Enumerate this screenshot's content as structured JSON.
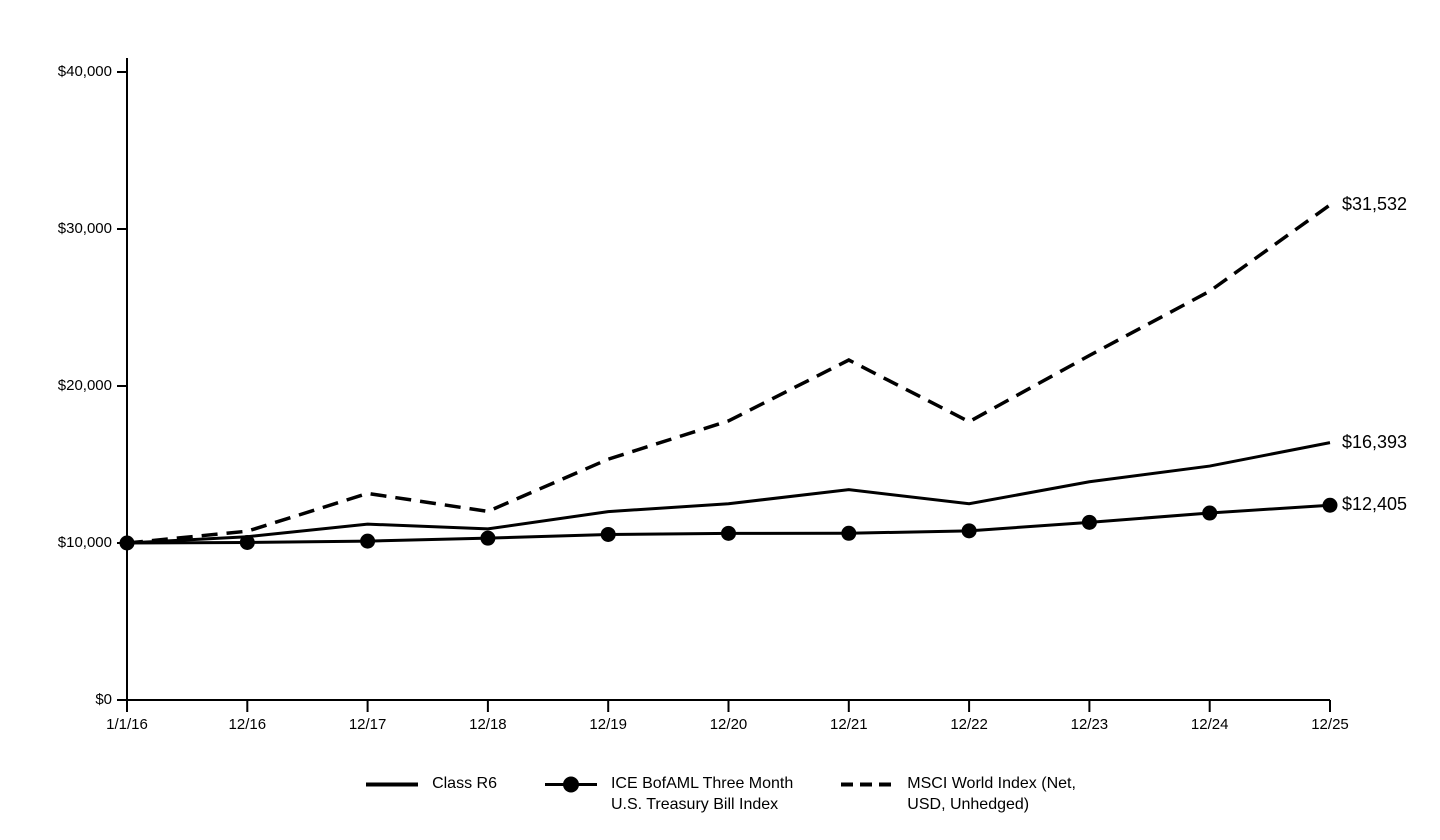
{
  "chart_data": {
    "type": "line",
    "title": "",
    "xlabel": "",
    "ylabel": "",
    "grid": false,
    "legend_position": "bottom",
    "ylim": [
      0,
      40000
    ],
    "x_labels": [
      "1/1/16",
      "12/16",
      "12/17",
      "12/18",
      "12/19",
      "12/20",
      "12/21",
      "12/22",
      "12/23",
      "12/24",
      "12/25"
    ],
    "y_ticks": [
      {
        "value": 0,
        "label": "$0"
      },
      {
        "value": 10000,
        "label": "$10,000"
      },
      {
        "value": 20000,
        "label": "$20,000"
      },
      {
        "value": 30000,
        "label": "$30,000"
      },
      {
        "value": 40000,
        "label": "$40,000"
      }
    ],
    "series": [
      {
        "name": "Class R6",
        "style": "solid",
        "marker": "none",
        "end_label": "$16,393",
        "values": [
          10000,
          10400,
          11200,
          10900,
          12000,
          12500,
          13400,
          12500,
          13900,
          14900,
          16393
        ]
      },
      {
        "name": "ICE BofAML Three Month U.S. Treasury Bill Index",
        "style": "solid",
        "marker": "circle",
        "end_label": "$12,405",
        "values": [
          10000,
          10033,
          10119,
          10309,
          10544,
          10614,
          10620,
          10775,
          11316,
          11910,
          12405
        ]
      },
      {
        "name": "MSCI World Index (Net, USD, Unhedged)",
        "style": "dashed",
        "marker": "none",
        "end_label": "$31,532",
        "values": [
          10000,
          10751,
          13159,
          12013,
          15337,
          17776,
          21655,
          17726,
          21943,
          26039,
          31532
        ]
      }
    ],
    "legend": [
      {
        "line1": "Class R6",
        "line2": ""
      },
      {
        "line1": "ICE BofAML Three Month",
        "line2": "U.S. Treasury Bill Index"
      },
      {
        "line1": "MSCI World Index (Net,",
        "line2": "USD, Unhedged)"
      }
    ],
    "colors": {
      "line": "#000000",
      "background": "#ffffff"
    }
  }
}
